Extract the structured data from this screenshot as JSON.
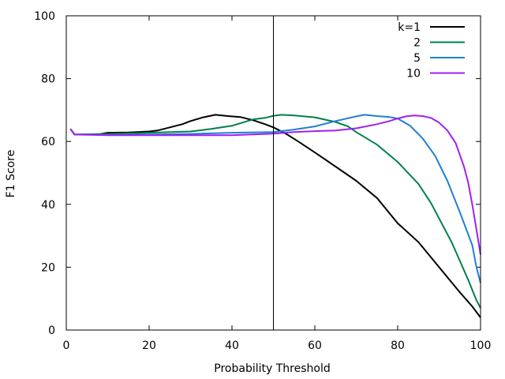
{
  "chart_data": {
    "type": "line",
    "title": "",
    "xlabel": "Probability Threshold",
    "ylabel": "F1 Score",
    "xlim": [
      0,
      100
    ],
    "ylim": [
      0,
      100
    ],
    "xticks": [
      0,
      20,
      40,
      60,
      80,
      100
    ],
    "yticks": [
      0,
      20,
      40,
      60,
      80,
      100
    ],
    "grid": false,
    "legend_position": "top-right",
    "vertical_line": {
      "x": 50
    },
    "series": [
      {
        "name": "k=1",
        "color": "#000000",
        "points": [
          [
            1,
            64
          ],
          [
            2,
            62.2
          ],
          [
            5,
            62.2
          ],
          [
            8,
            62.3
          ],
          [
            10,
            62.8
          ],
          [
            15,
            62.9
          ],
          [
            20,
            63.2
          ],
          [
            22,
            63.5
          ],
          [
            25,
            64.5
          ],
          [
            28,
            65.5
          ],
          [
            30,
            66.5
          ],
          [
            33,
            67.7
          ],
          [
            36,
            68.5
          ],
          [
            39,
            68.1
          ],
          [
            42,
            67.8
          ],
          [
            45,
            66.8
          ],
          [
            48,
            65.5
          ],
          [
            50,
            64.5
          ],
          [
            53,
            62.5
          ],
          [
            56,
            60
          ],
          [
            60,
            56.5
          ],
          [
            65,
            52
          ],
          [
            70,
            47.5
          ],
          [
            75,
            42
          ],
          [
            80,
            34
          ],
          [
            85,
            28
          ],
          [
            90,
            20
          ],
          [
            95,
            12
          ],
          [
            98,
            7.5
          ],
          [
            100,
            4
          ]
        ]
      },
      {
        "name": "2",
        "color": "#00804a",
        "points": [
          [
            1,
            64
          ],
          [
            2,
            62.2
          ],
          [
            10,
            62.4
          ],
          [
            20,
            62.8
          ],
          [
            30,
            63.2
          ],
          [
            35,
            64
          ],
          [
            40,
            65
          ],
          [
            45,
            67
          ],
          [
            48,
            67.5
          ],
          [
            50,
            68.2
          ],
          [
            52,
            68.5
          ],
          [
            55,
            68.3
          ],
          [
            60,
            67.7
          ],
          [
            65,
            66.2
          ],
          [
            68,
            64.8
          ],
          [
            70,
            63
          ],
          [
            75,
            59
          ],
          [
            80,
            53.5
          ],
          [
            85,
            46.5
          ],
          [
            88,
            40.5
          ],
          [
            90,
            35.5
          ],
          [
            93,
            28
          ],
          [
            95,
            22
          ],
          [
            97,
            16
          ],
          [
            99,
            9.5
          ],
          [
            100,
            7
          ]
        ]
      },
      {
        "name": "5",
        "color": "#1e7fd6",
        "points": [
          [
            1,
            64
          ],
          [
            2,
            62.2
          ],
          [
            10,
            62.1
          ],
          [
            20,
            62.2
          ],
          [
            30,
            62.4
          ],
          [
            40,
            62.8
          ],
          [
            50,
            63
          ],
          [
            55,
            63.8
          ],
          [
            60,
            64.8
          ],
          [
            65,
            66.5
          ],
          [
            70,
            68
          ],
          [
            72,
            68.5
          ],
          [
            75,
            68.1
          ],
          [
            78,
            67.8
          ],
          [
            80,
            67.3
          ],
          [
            83,
            65
          ],
          [
            86,
            61
          ],
          [
            89,
            55.5
          ],
          [
            92,
            47.5
          ],
          [
            95,
            37.5
          ],
          [
            98,
            27
          ],
          [
            99,
            20
          ],
          [
            100,
            15
          ]
        ]
      },
      {
        "name": "10",
        "color": "#a020f0",
        "points": [
          [
            1,
            64
          ],
          [
            2,
            62.2
          ],
          [
            10,
            62
          ],
          [
            20,
            62
          ],
          [
            30,
            62
          ],
          [
            40,
            62
          ],
          [
            50,
            62.5
          ],
          [
            55,
            63
          ],
          [
            60,
            63.3
          ],
          [
            65,
            63.5
          ],
          [
            70,
            64.2
          ],
          [
            75,
            65.5
          ],
          [
            78,
            66.5
          ],
          [
            80,
            67.3
          ],
          [
            82,
            68
          ],
          [
            84,
            68.3
          ],
          [
            86,
            68.1
          ],
          [
            88,
            67.5
          ],
          [
            90,
            66
          ],
          [
            92,
            63.5
          ],
          [
            94,
            59.5
          ],
          [
            96,
            52
          ],
          [
            97,
            47
          ],
          [
            98,
            40
          ],
          [
            99,
            32
          ],
          [
            100,
            24
          ]
        ]
      }
    ]
  }
}
